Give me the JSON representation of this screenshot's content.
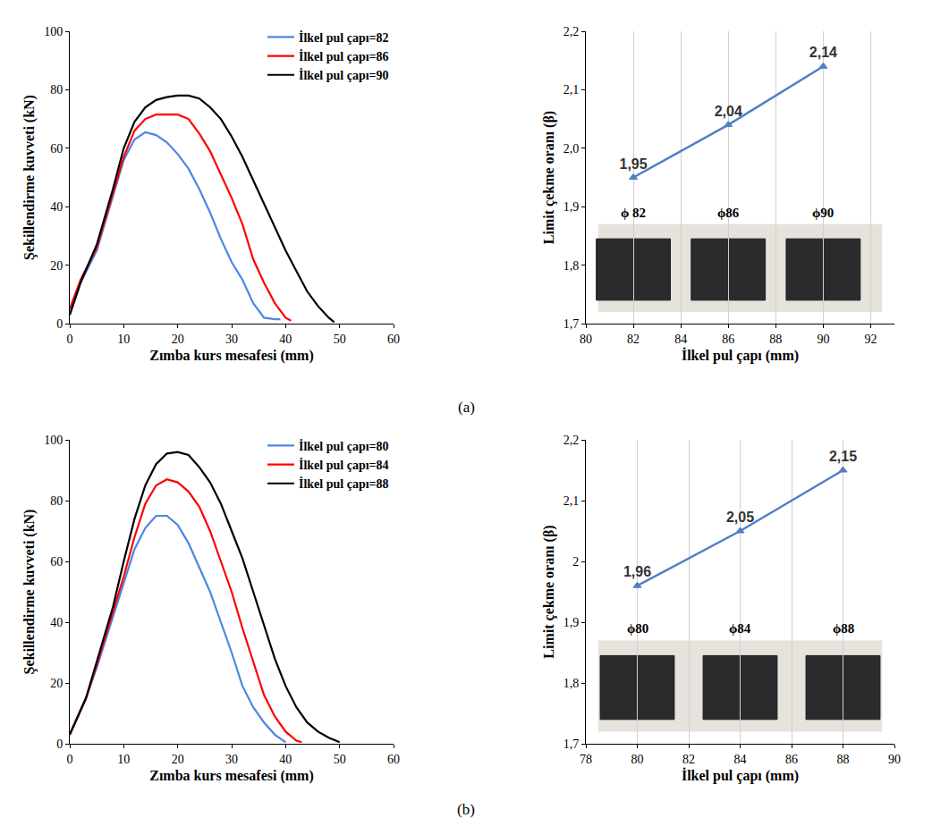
{
  "panel_labels": [
    "(a)",
    "(b)"
  ],
  "chart_data": [
    {
      "type": "line",
      "x_label": "Zımba kurs mesafesi (mm)",
      "y_label": "Şekillendirme kuvveti (kN)",
      "xlim": [
        0,
        60
      ],
      "xticks": [
        0,
        10,
        20,
        30,
        40,
        50,
        60
      ],
      "ylim": [
        0,
        100
      ],
      "yticks": [
        0,
        20,
        40,
        60,
        80,
        100
      ],
      "grid": false,
      "legend": "top right",
      "series": [
        {
          "name": "İlkel pul çapı=82",
          "color": "#4a86e8",
          "x": [
            0,
            2,
            5,
            8,
            10,
            12,
            14,
            16,
            18,
            20,
            22,
            24,
            26,
            28,
            30,
            32,
            34,
            36,
            38,
            39
          ],
          "values": [
            3,
            14,
            25,
            44,
            56,
            63,
            65.5,
            64.5,
            62,
            58,
            53,
            46,
            38,
            29,
            21,
            15,
            7,
            2,
            1.5,
            1.5
          ]
        },
        {
          "name": "İlkel pul çapı=86",
          "color": "#ff0000",
          "x": [
            0,
            2,
            5,
            8,
            10,
            12,
            14,
            16,
            18,
            20,
            22,
            24,
            26,
            28,
            30,
            32,
            34,
            36,
            38,
            40,
            41
          ],
          "values": [
            5,
            15,
            26,
            45,
            57,
            66,
            70,
            71.5,
            71.5,
            71.5,
            70,
            65,
            59,
            51,
            43,
            34,
            22,
            14,
            7,
            2,
            1
          ]
        },
        {
          "name": "İlkel pul çapı=90",
          "color": "#000000",
          "x": [
            0,
            2,
            5,
            8,
            10,
            12,
            14,
            16,
            18,
            20,
            22,
            24,
            26,
            28,
            30,
            32,
            34,
            36,
            38,
            40,
            42,
            44,
            46,
            48,
            49
          ],
          "values": [
            3,
            14,
            27,
            46,
            60,
            69,
            74,
            76.5,
            77.5,
            78,
            78,
            77,
            74,
            70,
            64,
            57,
            49,
            41,
            33,
            25,
            18,
            11,
            6,
            2,
            0.5
          ]
        }
      ]
    },
    {
      "type": "line",
      "x_label": "İlkel pul çapı (mm)",
      "y_label": "Limit çekme oranı (β)",
      "xlim": [
        80,
        93
      ],
      "xticks": [
        80,
        82,
        84,
        86,
        88,
        90,
        92
      ],
      "ylim": [
        1.7,
        2.2
      ],
      "yticks": [
        {
          "value": 1.7,
          "label": "1,7"
        },
        {
          "value": 1.8,
          "label": "1,8"
        },
        {
          "value": 1.9,
          "label": "1,9"
        },
        {
          "value": 2.0,
          "label": "2,0"
        },
        {
          "value": 2.1,
          "label": "2,1"
        },
        {
          "value": 2.2,
          "label": "2,2"
        }
      ],
      "grid": "x",
      "data_labels": true,
      "marker": "triangle",
      "series": [
        {
          "color": "#4f7fc7",
          "x": [
            82,
            86,
            90
          ],
          "values": [
            1.95,
            2.04,
            2.14
          ],
          "value_labels": [
            "1,95",
            "2,04",
            "2,14"
          ]
        }
      ],
      "annotations": [
        {
          "text": "ϕ 82",
          "x": 82,
          "y": 1.89
        },
        {
          "text": "ϕ86",
          "x": 86,
          "y": 1.89
        },
        {
          "text": "ϕ90",
          "x": 90,
          "y": 1.89
        }
      ]
    },
    {
      "type": "line",
      "x_label": "Zımba kurs mesafesi (mm)",
      "y_label": "Şekillendirme kuvveti (kN)",
      "xlim": [
        0,
        60
      ],
      "xticks": [
        0,
        10,
        20,
        30,
        40,
        50,
        60
      ],
      "ylim": [
        0,
        100
      ],
      "yticks": [
        0,
        20,
        40,
        60,
        80,
        100
      ],
      "grid": false,
      "legend": "top right",
      "series": [
        {
          "name": "İlkel pul çapı=80",
          "color": "#4a86e8",
          "x": [
            0,
            3,
            5,
            8,
            10,
            12,
            14,
            16,
            18,
            20,
            22,
            24,
            26,
            28,
            30,
            32,
            34,
            36,
            38,
            40
          ],
          "values": [
            3,
            15,
            25,
            42,
            53,
            64,
            71,
            75,
            75,
            72,
            66,
            58,
            50,
            40,
            30,
            19,
            12,
            7,
            3,
            0.5
          ]
        },
        {
          "name": "İlkel pul çapı=84",
          "color": "#ff0000",
          "x": [
            0,
            3,
            5,
            8,
            10,
            12,
            14,
            16,
            18,
            20,
            22,
            24,
            26,
            28,
            30,
            32,
            34,
            36,
            38,
            40,
            42,
            43
          ],
          "values": [
            3,
            15,
            26,
            43,
            55,
            68,
            79,
            85,
            87,
            86,
            83,
            78,
            70,
            60,
            50,
            38,
            27,
            16,
            9,
            4,
            1,
            0.5
          ]
        },
        {
          "name": "İlkel pul çapı=88",
          "color": "#000000",
          "x": [
            0,
            3,
            5,
            8,
            10,
            12,
            14,
            16,
            18,
            20,
            22,
            24,
            26,
            28,
            30,
            32,
            34,
            36,
            38,
            40,
            42,
            44,
            46,
            48,
            50
          ],
          "values": [
            3,
            15,
            27,
            45,
            60,
            74,
            85,
            92,
            95.5,
            96,
            95,
            91,
            86,
            79,
            70,
            61,
            50,
            39,
            28,
            19,
            12,
            7,
            4,
            2,
            0.5
          ]
        }
      ]
    },
    {
      "type": "line",
      "x_label": "İlkel pul çapı (mm)",
      "y_label": "Limit çekme oranı (β)",
      "xlim": [
        78,
        90
      ],
      "xticks": [
        78,
        80,
        82,
        84,
        86,
        88,
        90
      ],
      "ylim": [
        1.7,
        2.2
      ],
      "yticks": [
        {
          "value": 1.7,
          "label": "1,7"
        },
        {
          "value": 1.8,
          "label": "1,8"
        },
        {
          "value": 1.9,
          "label": "1,9"
        },
        2,
        {
          "value": 2.1,
          "label": "2,1"
        },
        {
          "value": 2.2,
          "label": "2,2"
        }
      ],
      "grid": "x",
      "data_labels": true,
      "marker": "triangle",
      "series": [
        {
          "color": "#4f7fc7",
          "x": [
            80,
            84,
            88
          ],
          "values": [
            1.96,
            2.05,
            2.15
          ],
          "value_labels": [
            "1,96",
            "2,05",
            "2,15"
          ]
        }
      ],
      "annotations": [
        {
          "text": "ϕ80",
          "x": 80,
          "y": 1.89
        },
        {
          "text": "ϕ84",
          "x": 84,
          "y": 1.89
        },
        {
          "text": "ϕ88",
          "x": 88,
          "y": 1.89
        }
      ]
    }
  ]
}
